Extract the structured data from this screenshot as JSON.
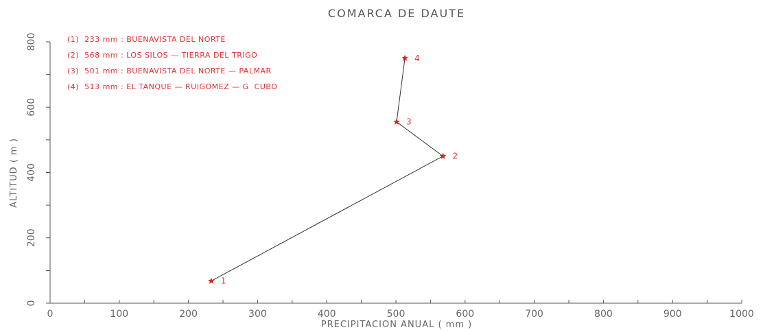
{
  "chart_data": {
    "type": "line",
    "title": "COMARCA DE DAUTE",
    "xlabel": "PRECIPITACION ANUAL ( mm )",
    "ylabel": "ALTITUD ( m )",
    "xlim": [
      0,
      1000
    ],
    "ylim": [
      0,
      800
    ],
    "x_ticks": [
      0,
      100,
      200,
      300,
      400,
      500,
      600,
      700,
      800,
      900,
      1000
    ],
    "y_ticks": [
      0,
      200,
      400,
      600,
      800
    ],
    "grid": false,
    "points": [
      {
        "label": "1",
        "x": 233,
        "y": 68
      },
      {
        "label": "2",
        "x": 568,
        "y": 450
      },
      {
        "label": "3",
        "x": 501,
        "y": 555
      },
      {
        "label": "4",
        "x": 513,
        "y": 750
      }
    ],
    "legend": [
      "(1)  233 mm : BUENAVISTA DEL NORTE",
      "(2)  568 mm : LOS SILOS — TIERRA DEL TRIGO",
      "(3)  501 mm : BUENAVISTA DEL NORTE — PALMAR",
      "(4)  513 mm : EL TANQUE — RUIGOMEZ — G  CUBO"
    ],
    "legend_position": "top-left",
    "colors": {
      "marker": "#e02020",
      "legend_text": "#e03030",
      "line": "#333333",
      "axis": "#555555"
    }
  }
}
